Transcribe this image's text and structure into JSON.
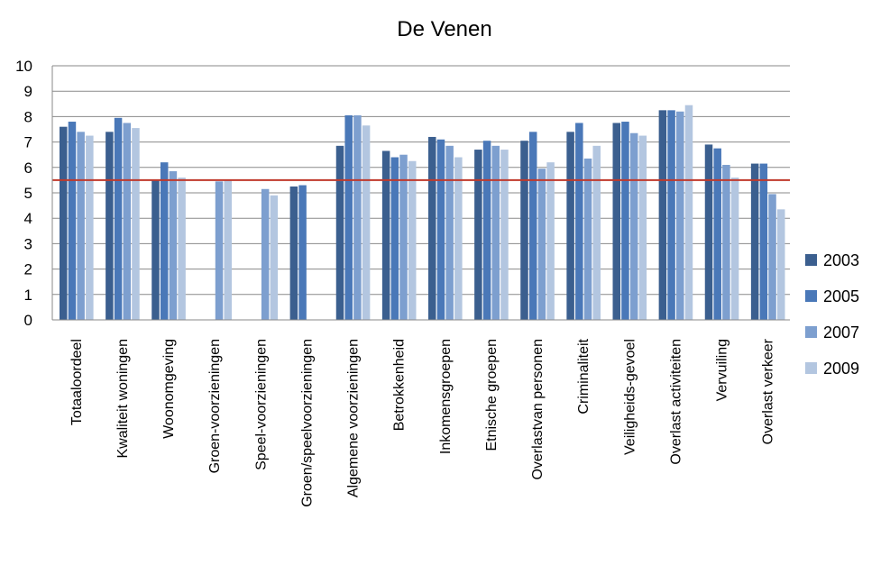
{
  "chart_data": {
    "type": "bar",
    "title": "De Venen",
    "xlabel": "",
    "ylabel": "",
    "ylim": [
      0,
      10
    ],
    "yticks": [
      0,
      1,
      2,
      3,
      4,
      5,
      6,
      7,
      8,
      9,
      10
    ],
    "grid": "horizontal",
    "legend_position": "right",
    "reference_line": {
      "value": 5.5,
      "color": "#c0392b"
    },
    "categories": [
      "Totaaloordeel",
      "Kwaliteit woningen",
      "Woonomgeving",
      "Groen-voorzieningen",
      "Speel-voorzieningen",
      "Groen/speelvoorzieningen",
      "Algemene voorzieningen",
      "Betrokkenheid",
      "Inkomensgroepen",
      "Etnische groepen",
      "Overlastvan personen",
      "Criminaliteit",
      "Veiligheids-gevoel",
      "Overlast activiteiten",
      "Vervuiling",
      "Overlast verkeer"
    ],
    "series": [
      {
        "name": "2003",
        "color": "#3b5f8f",
        "values": [
          7.6,
          7.4,
          5.5,
          null,
          null,
          5.25,
          6.85,
          6.65,
          7.2,
          6.7,
          7.05,
          7.4,
          7.75,
          8.25,
          6.9,
          6.15
        ]
      },
      {
        "name": "2005",
        "color": "#4a78b8",
        "values": [
          7.8,
          7.95,
          6.2,
          null,
          null,
          5.3,
          8.05,
          6.4,
          7.1,
          7.05,
          7.4,
          7.75,
          7.8,
          8.25,
          6.75,
          6.15
        ]
      },
      {
        "name": "2007",
        "color": "#7d9fcf",
        "values": [
          7.4,
          7.75,
          5.85,
          5.45,
          5.15,
          null,
          8.05,
          6.5,
          6.85,
          6.85,
          5.95,
          6.35,
          7.35,
          8.2,
          6.1,
          4.95
        ]
      },
      {
        "name": "2009",
        "color": "#b3c6e0",
        "values": [
          7.25,
          7.55,
          5.6,
          5.5,
          4.9,
          null,
          7.65,
          6.25,
          6.4,
          6.7,
          6.2,
          6.85,
          7.25,
          8.45,
          5.6,
          4.35
        ]
      }
    ]
  }
}
